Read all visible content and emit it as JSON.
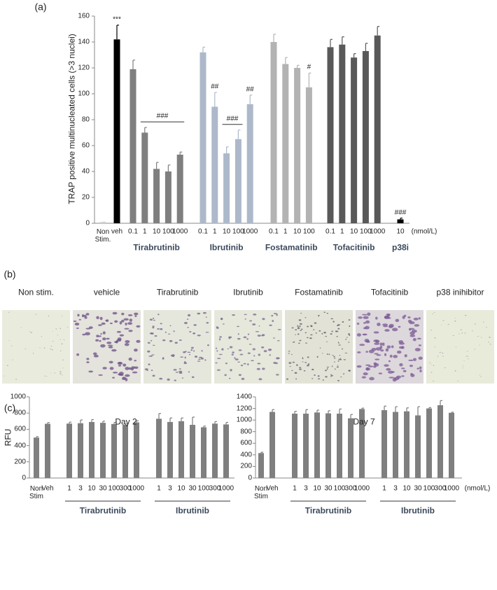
{
  "chart_data": [
    {
      "type": "bar",
      "panel_label": "(a)",
      "ylabel": "TRAP positive multinucleated cells (>3 nuclei)",
      "x_unit": "(nmol/L)",
      "ylim": [
        0,
        160
      ],
      "yticks": [
        0,
        20,
        40,
        60,
        80,
        100,
        120,
        140,
        160
      ],
      "series": [
        {
          "name": null,
          "color": "#d0d0d0",
          "categories": [
            "Non\nStim."
          ],
          "values": [
            1
          ],
          "errors": [
            0
          ],
          "annotations": [
            null
          ]
        },
        {
          "name": null,
          "color": "#000000",
          "categories": [
            "veh"
          ],
          "values": [
            142
          ],
          "errors": [
            11
          ],
          "annotations": [
            "***"
          ]
        },
        {
          "name": "Tirabrutinib",
          "color": "#7f7f7f",
          "categories": [
            "0.1",
            "1",
            "10",
            "100",
            "1000"
          ],
          "values": [
            119,
            70,
            42,
            40,
            53
          ],
          "errors": [
            7,
            4,
            5,
            5,
            2
          ],
          "annotations": [
            null,
            null,
            null,
            null,
            null
          ],
          "bracket": {
            "text": "###",
            "from": "1",
            "to": "1000"
          }
        },
        {
          "name": "Ibrutinib",
          "color": "#adb9ca",
          "categories": [
            "0.1",
            "1",
            "10",
            "100",
            "1000"
          ],
          "values": [
            132,
            90,
            54,
            65,
            92
          ],
          "errors": [
            4,
            11,
            5,
            7,
            7
          ],
          "annotations": [
            null,
            "##",
            null,
            null,
            "##"
          ],
          "bracket": {
            "text": "###",
            "from": "10",
            "to": "100"
          }
        },
        {
          "name": "Fostamatinib",
          "color": "#b3b3b3",
          "categories": [
            "0.1",
            "1",
            "10",
            "100"
          ],
          "values": [
            140,
            123,
            120,
            105
          ],
          "errors": [
            6,
            5,
            2,
            11
          ],
          "annotations": [
            null,
            null,
            null,
            "#"
          ]
        },
        {
          "name": "Tofacitinib",
          "color": "#595959",
          "categories": [
            "0.1",
            "1",
            "10",
            "100",
            "1000"
          ],
          "values": [
            136,
            138,
            128,
            133,
            145
          ],
          "errors": [
            6,
            6,
            3,
            6,
            7
          ],
          "annotations": [
            null,
            null,
            null,
            null,
            null
          ]
        },
        {
          "name": "p38i",
          "color": "#000000",
          "categories": [
            "10"
          ],
          "values": [
            3
          ],
          "errors": [
            1
          ],
          "annotations": [
            "###"
          ]
        }
      ]
    },
    {
      "type": "bar",
      "title": "Day 2",
      "ylabel": "RFU",
      "ylim": [
        0,
        1000
      ],
      "yticks": [
        0,
        200,
        400,
        600,
        800,
        1000
      ],
      "series": [
        {
          "name": null,
          "color": "#7f7f7f",
          "categories": [
            "Non\nStim",
            "Veh"
          ],
          "values": [
            498,
            668
          ],
          "errors": [
            12,
            15
          ]
        },
        {
          "name": "Tirabrutinib",
          "color": "#7f7f7f",
          "categories": [
            "1",
            "3",
            "10",
            "30",
            "100",
            "300",
            "1000"
          ],
          "values": [
            670,
            675,
            690,
            680,
            665,
            655,
            685
          ],
          "errors": [
            18,
            40,
            30,
            20,
            20,
            10,
            20
          ]
        },
        {
          "name": "Ibrutinib",
          "color": "#7f7f7f",
          "categories": [
            "1",
            "3",
            "10",
            "30",
            "100",
            "300",
            "1000"
          ],
          "values": [
            730,
            690,
            700,
            655,
            625,
            670,
            660
          ],
          "errors": [
            65,
            50,
            40,
            95,
            15,
            25,
            25
          ]
        }
      ]
    },
    {
      "type": "bar",
      "title": "Day 7",
      "x_unit": "(nmol/L)",
      "ylim": [
        0,
        1400
      ],
      "yticks": [
        0,
        200,
        400,
        600,
        800,
        1000,
        1200,
        1400
      ],
      "series": [
        {
          "name": null,
          "color": "#7f7f7f",
          "categories": [
            "Non\nStim",
            "Veh"
          ],
          "values": [
            430,
            1140
          ],
          "errors": [
            15,
            40
          ]
        },
        {
          "name": "Tirabrutinib",
          "color": "#7f7f7f",
          "categories": [
            "1",
            "3",
            "10",
            "30",
            "100",
            "300",
            "1000"
          ],
          "values": [
            1110,
            1110,
            1130,
            1115,
            1110,
            1030,
            1190
          ],
          "errors": [
            40,
            70,
            40,
            45,
            80,
            65,
            15
          ]
        },
        {
          "name": "Ibrutinib",
          "color": "#7f7f7f",
          "categories": [
            "1",
            "3",
            "10",
            "30",
            "100",
            "300",
            "1000"
          ],
          "values": [
            1170,
            1140,
            1150,
            1080,
            1200,
            1255,
            1125
          ],
          "errors": [
            70,
            90,
            60,
            150,
            15,
            80,
            10
          ]
        }
      ]
    }
  ],
  "micrographs": {
    "panel_label": "(b)",
    "labels": [
      "Non stim.",
      "vehicle",
      "Tirabrutinib",
      "Ibrutinib",
      "Fostamatinib",
      "Tofacitinib",
      "p38 inihibitor"
    ]
  },
  "panel_c_label": "(c)"
}
